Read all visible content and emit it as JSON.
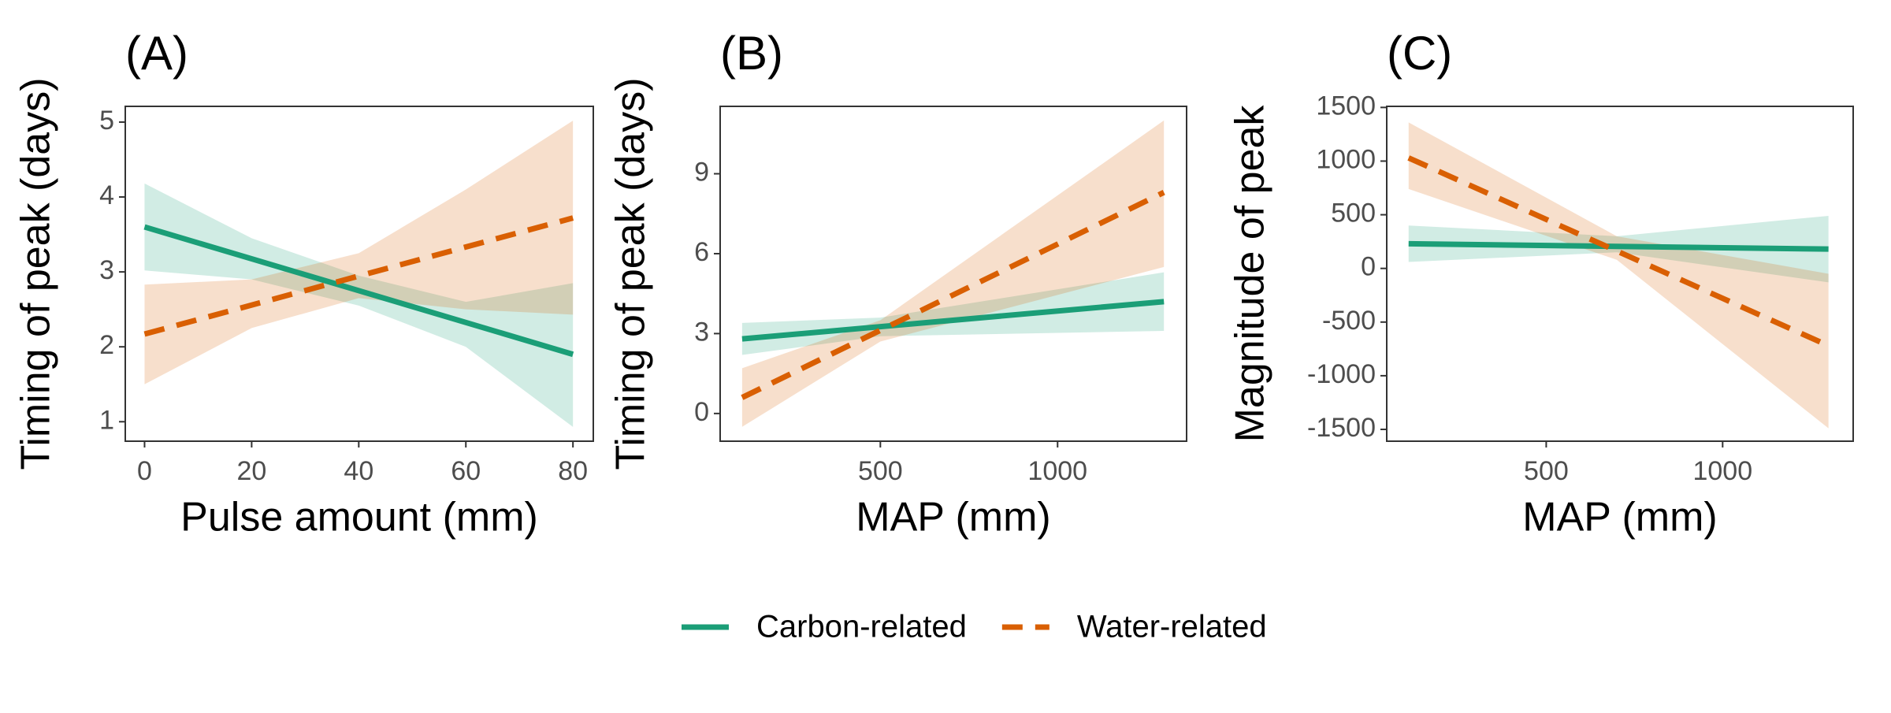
{
  "chart_data": [
    {
      "type": "line",
      "panel_label": "(A)",
      "x_label": "Pulse amount (mm)",
      "y_label": "Timing of peak (days)",
      "xlim": [
        -3.6,
        83.8
      ],
      "ylim": [
        0.74,
        5.21
      ],
      "xticks": [
        0,
        20,
        40,
        60,
        80
      ],
      "yticks": [
        1,
        2,
        3,
        4,
        5
      ],
      "x": [
        0,
        80
      ],
      "series": [
        {
          "name": "Carbon-related",
          "color": "#1b9e77",
          "dash": false,
          "values": [
            3.6,
            1.9
          ],
          "band_x": [
            0,
            20,
            40,
            60,
            80
          ],
          "band_lower": [
            3.02,
            2.9,
            2.55,
            2.0,
            0.93
          ],
          "band_upper": [
            4.18,
            3.45,
            2.95,
            2.6,
            2.85
          ]
        },
        {
          "name": "Water-related",
          "color": "#d95f02",
          "dash": true,
          "values": [
            2.17,
            3.72
          ],
          "band_x": [
            0,
            20,
            40,
            60,
            80
          ],
          "band_lower": [
            1.5,
            2.25,
            2.65,
            2.5,
            2.43
          ],
          "band_upper": [
            2.83,
            2.9,
            3.25,
            4.1,
            5.02
          ]
        }
      ]
    },
    {
      "type": "line",
      "panel_label": "(B)",
      "x_label": "MAP (mm)",
      "y_label": "Timing of peak (days)",
      "xlim": [
        48,
        1364
      ],
      "ylim": [
        -1.04,
        11.53
      ],
      "xticks": [
        500,
        1000
      ],
      "yticks": [
        0,
        3,
        6,
        9
      ],
      "x": [
        110,
        1300
      ],
      "series": [
        {
          "color": "#1b9e77",
          "dash": false,
          "values": [
            2.8,
            4.2
          ],
          "band_x": [
            110,
            500,
            1300
          ],
          "band_lower": [
            2.2,
            2.9,
            3.1
          ],
          "band_upper": [
            3.4,
            3.6,
            5.3
          ]
        },
        {
          "color": "#d95f02",
          "dash": true,
          "values": [
            0.6,
            8.3
          ],
          "band_x": [
            110,
            500,
            1300
          ],
          "band_lower": [
            -0.5,
            2.7,
            5.5
          ],
          "band_upper": [
            1.7,
            3.5,
            11.0
          ]
        }
      ]
    },
    {
      "type": "line",
      "panel_label": "(C)",
      "x_label": "MAP (mm)",
      "y_label": "Magnitude of peak",
      "xlim": [
        48,
        1370
      ],
      "ylim": [
        -1610,
        1510
      ],
      "xticks": [
        500,
        1000
      ],
      "yticks": [
        -1500,
        -1000,
        -500,
        0,
        500,
        1000,
        1500
      ],
      "x": [
        110,
        1300
      ],
      "series": [
        {
          "color": "#1b9e77",
          "dash": false,
          "values": [
            230,
            180
          ],
          "band_x": [
            110,
            700,
            1300
          ],
          "band_lower": [
            60,
            150,
            -130
          ],
          "band_upper": [
            400,
            300,
            490
          ]
        },
        {
          "color": "#d95f02",
          "dash": true,
          "values": [
            1030,
            -720
          ],
          "band_x": [
            110,
            700,
            1300
          ],
          "band_lower": [
            740,
            80,
            -1490
          ],
          "band_upper": [
            1360,
            300,
            -50
          ]
        }
      ]
    }
  ]
}
